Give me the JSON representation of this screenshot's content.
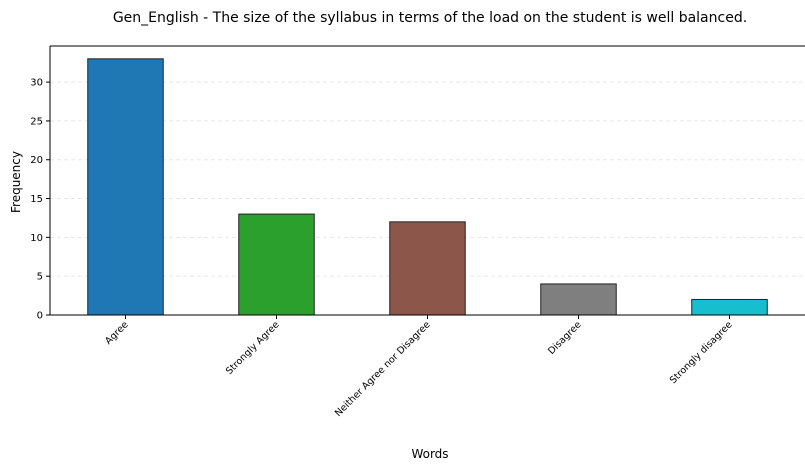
{
  "chart_data": {
    "type": "bar",
    "title": "Gen_English - The size of the syllabus in terms of the load on the student is well balanced.",
    "xlabel": "Words",
    "ylabel": "Frequency",
    "categories": [
      "Agree",
      "Strongly Agree",
      "Neither Agree nor Disagree",
      "Disagree",
      "Strongly disagree"
    ],
    "values": [
      33,
      13,
      12,
      4,
      2
    ],
    "colors": [
      "#1f77b4",
      "#2ca02c",
      "#8c564b",
      "#7f7f7f",
      "#17becf"
    ],
    "ylim": [
      0,
      34.65
    ],
    "yticks": [
      0,
      5,
      10,
      15,
      20,
      25,
      30
    ],
    "grid": "y-dashed",
    "legend": "none"
  }
}
